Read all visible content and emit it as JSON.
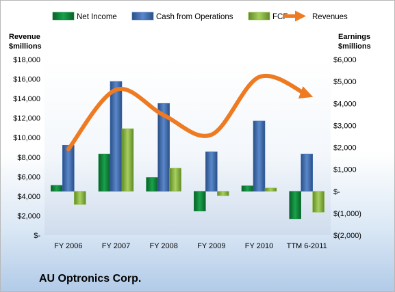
{
  "company": "AU Optronics Corp.",
  "colors": {
    "net_income": "#0f8a3c",
    "cash_from_operations": "#3e6fb5",
    "fcf": "#8fbc42",
    "revenues": "#ee7a22"
  },
  "chart_data": {
    "type": "bar",
    "categories": [
      "FY 2006",
      "FY 2007",
      "FY 2008",
      "FY 2009",
      "FY 2010",
      "TTM 6-2011"
    ],
    "left_axis": {
      "title_line1": "Revenue",
      "title_line2": "$millions",
      "min": 0,
      "max": 18000,
      "ticks": [
        0,
        2000,
        4000,
        6000,
        8000,
        10000,
        12000,
        14000,
        16000,
        18000
      ],
      "tick_labels": [
        "$-",
        "$2,000",
        "$4,000",
        "$6,000",
        "$8,000",
        "$10,000",
        "$12,000",
        "$14,000",
        "$16,000",
        "$18,000"
      ]
    },
    "right_axis": {
      "title_line1": "Earnings",
      "title_line2": "$millions",
      "min": -2000,
      "max": 6000,
      "ticks": [
        -2000,
        -1000,
        0,
        1000,
        2000,
        3000,
        4000,
        5000,
        6000
      ],
      "tick_labels": [
        "$(2,000)",
        "$(1,000)",
        "$-",
        "$1,000",
        "$2,000",
        "$3,000",
        "$4,000",
        "$5,000",
        "$6,000"
      ]
    },
    "legend_placement": "top",
    "grid": false,
    "series": [
      {
        "name": "Net Income",
        "type": "bar",
        "axis": "right",
        "values": [
          270,
          1700,
          630,
          -900,
          250,
          -1250
        ]
      },
      {
        "name": "Cash from Operations",
        "type": "bar",
        "axis": "right",
        "values": [
          2100,
          5000,
          4000,
          1800,
          3200,
          1700
        ]
      },
      {
        "name": "FCF",
        "type": "bar",
        "axis": "right",
        "values": [
          -600,
          2850,
          1050,
          -200,
          150,
          -950
        ]
      },
      {
        "name": "Revenues",
        "type": "line",
        "axis": "left",
        "values": [
          8800,
          14900,
          12300,
          10300,
          16200,
          14400
        ]
      }
    ]
  }
}
